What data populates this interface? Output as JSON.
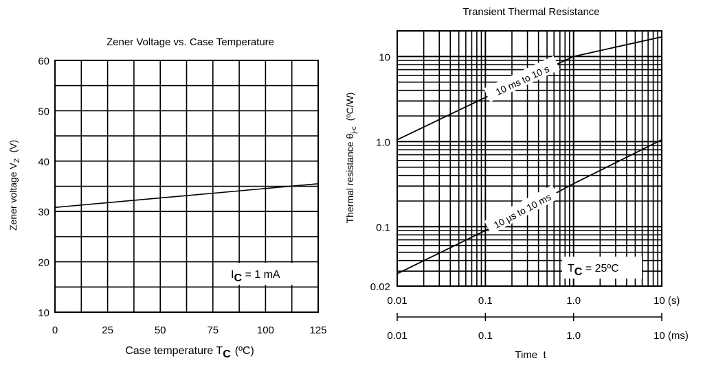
{
  "chart_data": [
    {
      "type": "line",
      "title": "Zener Voltage vs. Case Temperature",
      "xlabel": "Case temperature T",
      "xlabel_sub": "C",
      "xlabel_unit": "(ºC)",
      "ylabel": "Zener voltage V",
      "ylabel_sub": "Z",
      "ylabel_unit": "(V)",
      "xlim": [
        0,
        125
      ],
      "ylim": [
        10,
        60
      ],
      "x_ticks": [
        "0",
        "25",
        "50",
        "75",
        "100",
        "125"
      ],
      "y_ticks": [
        "10",
        "20",
        "30",
        "40",
        "50",
        "60"
      ],
      "grid": true,
      "annotation": {
        "text": "I",
        "sub": "C",
        "rest": " = 1 mA"
      },
      "series": [
        {
          "x": [
            0,
            125
          ],
          "y": [
            30.8,
            35.5
          ]
        }
      ]
    },
    {
      "type": "line",
      "title": "Transient Thermal Resistance",
      "xlabel": "Time  t",
      "ylabel": "Thermal resistance θ",
      "ylabel_sub": "j-c",
      "ylabel_unit": "(ºC/W)",
      "xscale": "log",
      "yscale": "log",
      "xlim": [
        0.01,
        10
      ],
      "ylim": [
        0.02,
        20
      ],
      "x_ticks_s": [
        "0.01",
        "0.1",
        "1.0",
        "10 (s)"
      ],
      "x_ticks_ms": [
        "0.01",
        "0.1",
        "1.0",
        "10 (ms)"
      ],
      "y_ticks": [
        "0.02",
        "0.1",
        "1.0",
        "10"
      ],
      "grid": true,
      "annotation": {
        "text": "T",
        "sub": "C",
        "rest": " = 25ºC"
      },
      "series": [
        {
          "name": "10 ms to 10 s",
          "x": [
            0.01,
            0.1,
            1,
            10
          ],
          "y": [
            1.05,
            3.3,
            10,
            17
          ]
        },
        {
          "name": "10 µs to 10 ms",
          "x": [
            0.01,
            0.1,
            1,
            10
          ],
          "y": [
            0.028,
            0.09,
            0.32,
            1.05
          ]
        }
      ]
    }
  ]
}
